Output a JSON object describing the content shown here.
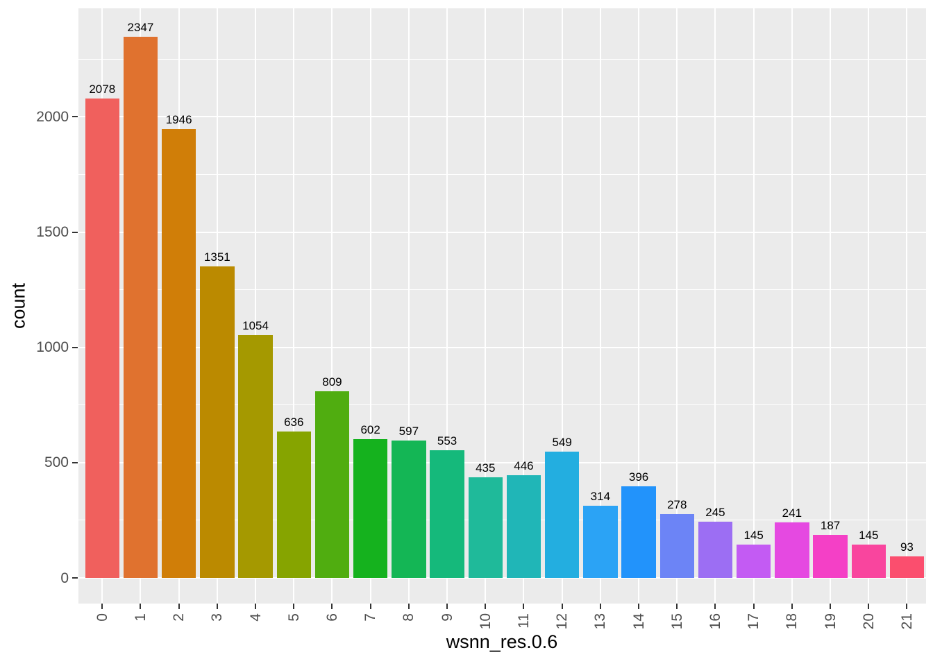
{
  "chart_data": {
    "type": "bar",
    "title": "",
    "xlabel": "wsnn_res.0.6",
    "ylabel": "count",
    "categories": [
      "0",
      "1",
      "2",
      "3",
      "4",
      "5",
      "6",
      "7",
      "8",
      "9",
      "10",
      "11",
      "12",
      "13",
      "14",
      "15",
      "16",
      "17",
      "18",
      "19",
      "20",
      "21"
    ],
    "values": [
      2078,
      2347,
      1946,
      1351,
      1054,
      636,
      809,
      602,
      597,
      553,
      435,
      446,
      549,
      314,
      396,
      278,
      245,
      145,
      241,
      187,
      145,
      93
    ],
    "bar_value_labels": [
      "2078",
      "2347",
      "1946",
      "1351",
      "1054",
      "636",
      "809",
      "602",
      "597",
      "553",
      "435",
      "446",
      "549",
      "314",
      "396",
      "278",
      "245",
      "145",
      "241",
      "187",
      "145",
      "93"
    ],
    "bar_colors": [
      "#F0605D",
      "#E0722F",
      "#D07E08",
      "#BB8A00",
      "#A59900",
      "#86A400",
      "#50AD10",
      "#15B21E",
      "#14B655",
      "#15B97B",
      "#1FBA9A",
      "#20B6B7",
      "#23AEE0",
      "#2BA3F5",
      "#2293FB",
      "#6C84F6",
      "#9C6EF3",
      "#C35BF3",
      "#E549E1",
      "#F440C6",
      "#F9459E",
      "#FB4E6E"
    ],
    "y_ticks": [
      0,
      500,
      1000,
      1500,
      2000
    ],
    "y_tick_labels": [
      "0",
      "500",
      "1000",
      "1500",
      "2000"
    ],
    "y_minor_ticks": [
      250,
      750,
      1250,
      1750,
      2250
    ],
    "ylim": [
      -117,
      2464
    ],
    "grid": "on",
    "legend_position": "none",
    "x_tick_label_angle": 90,
    "panel_background": "#EBEBEB",
    "gridline_color": "#FFFFFF",
    "axis_text_color": "#4D4D4D",
    "tick_mark_color": "#333333",
    "bar_label_color": "#000000"
  }
}
